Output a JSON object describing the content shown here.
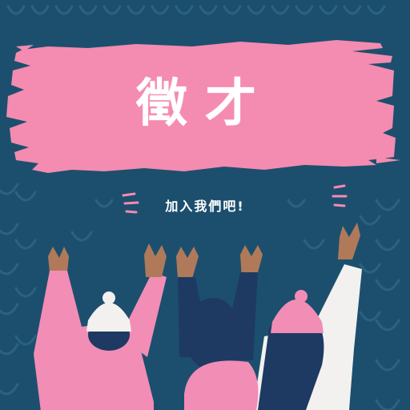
{
  "poster": {
    "headline": "徵才",
    "subline": "加入我們吧!"
  },
  "colors": {
    "background": "#1c4f6e",
    "pattern": "#2b6283",
    "brush": "#f48bb0",
    "pink": "#f28db6",
    "hat_white": "#f3f1ef",
    "navy": "#1e3a63",
    "skin": "#b07a5a"
  }
}
